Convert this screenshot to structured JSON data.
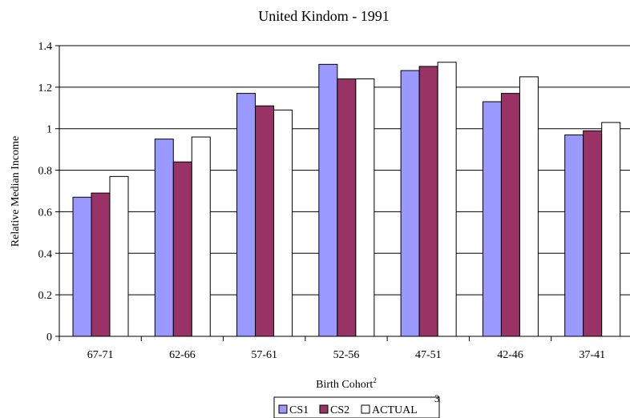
{
  "chart_data": {
    "type": "bar",
    "title": "United Kindom - 1991",
    "xlabel": "Birth Cohort",
    "xlabel_superscript": "2",
    "ylabel": "Relative Median Income",
    "categories": [
      "67-71",
      "62-66",
      "57-61",
      "52-56",
      "47-51",
      "42-46",
      "37-41"
    ],
    "series": [
      {
        "name": "CS1",
        "color": "#9999ff",
        "values": [
          0.67,
          0.95,
          1.17,
          1.31,
          1.28,
          1.13,
          0.97
        ]
      },
      {
        "name": "CS2",
        "color": "#993366",
        "values": [
          0.69,
          0.84,
          1.11,
          1.24,
          1.3,
          1.17,
          0.99
        ]
      },
      {
        "name": "ACTUAL",
        "color": "#ffffff",
        "values": [
          0.77,
          0.96,
          1.09,
          1.24,
          1.32,
          1.25,
          1.03
        ]
      }
    ],
    "ylim": [
      0,
      1.4
    ],
    "yticks": [
      "0",
      "0.2",
      "0.4",
      "0.6",
      "0.8",
      "1",
      "1.2",
      "1.4"
    ],
    "grid": true,
    "legend_position": "bottom",
    "legend_superscript": "3"
  }
}
